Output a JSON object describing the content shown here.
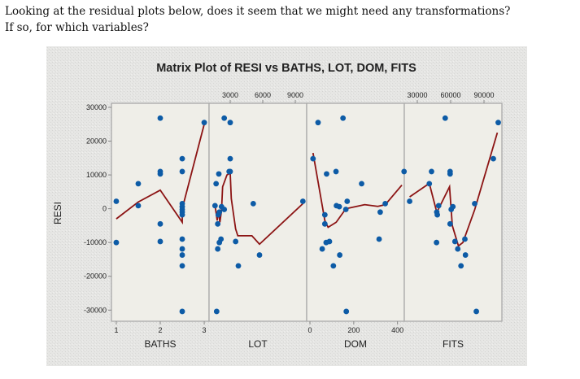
{
  "question": {
    "line1": "Looking at the residual plots below, does it seem that we might need any transformations?",
    "line2": "If so, for which variables?"
  },
  "chart_data": {
    "type": "scatter",
    "title": "Matrix Plot of RESI vs BATHS, LOT, DOM, FITS",
    "ylabel": "RESI",
    "ylim": [
      -33300,
      31200
    ],
    "yticks": [
      "30000",
      "20000",
      "10000",
      "0",
      "-10000",
      "-20000",
      "-30000"
    ],
    "ytick_values": [
      30000,
      20000,
      10000,
      0,
      -10000,
      -20000,
      -30000
    ],
    "grid": false,
    "colors": {
      "points": "#0d5ba6",
      "smoother": "#8c1414",
      "plot_bg": "#efeee8",
      "frame": "#a9a9a9"
    },
    "panels": [
      {
        "xlabel": "BATHS",
        "tick_side": "bottom",
        "xlim": [
          0.89,
          3.11
        ],
        "xticks": [
          "1",
          "2",
          "3"
        ],
        "xtick_values": [
          1,
          2,
          3
        ],
        "points": [
          [
            1,
            2200
          ],
          [
            1,
            -10000
          ],
          [
            1.5,
            7400
          ],
          [
            1.5,
            900
          ],
          [
            2,
            26800
          ],
          [
            2,
            11000
          ],
          [
            2,
            10300
          ],
          [
            2,
            -4500
          ],
          [
            2,
            -9700
          ],
          [
            2.5,
            14800
          ],
          [
            2.5,
            11000
          ],
          [
            2.5,
            1500
          ],
          [
            2.5,
            600
          ],
          [
            2.5,
            -200
          ],
          [
            2.5,
            -1000
          ],
          [
            2.5,
            -1800
          ],
          [
            2.5,
            -9000
          ],
          [
            2.5,
            -11900
          ],
          [
            2.5,
            -13700
          ],
          [
            2.5,
            -16900
          ],
          [
            2.5,
            -30400
          ],
          [
            3,
            25500
          ]
        ],
        "smoother": [
          [
            1,
            -3000
          ],
          [
            1.5,
            2000
          ],
          [
            2,
            5500
          ],
          [
            2.5,
            -4000
          ],
          [
            2.5,
            0
          ],
          [
            3,
            25000
          ]
        ]
      },
      {
        "xlabel": "LOT",
        "tick_side": "top",
        "xlim": [
          1050,
          10050
        ],
        "xticks": [
          "3000",
          "6000",
          "9000"
        ],
        "xtick_values": [
          3000,
          6000,
          9000
        ],
        "points": [
          [
            9700,
            2200
          ],
          [
            5125,
            1500
          ],
          [
            5700,
            -13700
          ],
          [
            3750,
            -16900
          ],
          [
            3500,
            -9700
          ],
          [
            3000,
            25500
          ],
          [
            2450,
            26800
          ],
          [
            3000,
            14800
          ],
          [
            3000,
            11000
          ],
          [
            2900,
            11000
          ],
          [
            1950,
            10300
          ],
          [
            1700,
            7400
          ],
          [
            1600,
            900
          ],
          [
            2200,
            600
          ],
          [
            2450,
            -200
          ],
          [
            2000,
            -1000
          ],
          [
            1900,
            -1800
          ],
          [
            1850,
            -4500
          ],
          [
            2150,
            -9000
          ],
          [
            2000,
            -10000
          ],
          [
            1850,
            -11900
          ],
          [
            1750,
            -30400
          ]
        ],
        "smoother": [
          [
            1600,
            1000
          ],
          [
            1800,
            -3500
          ],
          [
            1900,
            -500
          ],
          [
            2050,
            -4000
          ],
          [
            2200,
            -500
          ],
          [
            2300,
            6500
          ],
          [
            2700,
            10000
          ],
          [
            3000,
            10500
          ],
          [
            3100,
            3000
          ],
          [
            3500,
            -6000
          ],
          [
            3700,
            -8000
          ],
          [
            5000,
            -8000
          ],
          [
            5700,
            -10500
          ],
          [
            9700,
            1500
          ]
        ]
      },
      {
        "xlabel": "DOM",
        "tick_side": "bottom",
        "xlim": [
          -15,
          431
        ],
        "xticks": [
          "0",
          "200",
          "400"
        ],
        "xtick_values": [
          0,
          200,
          400
        ],
        "points": [
          [
            14,
            14800
          ],
          [
            37,
            25500
          ],
          [
            151,
            26800
          ],
          [
            76,
            10300
          ],
          [
            119,
            11000
          ],
          [
            430,
            11000
          ],
          [
            236,
            7400
          ],
          [
            170,
            2200
          ],
          [
            344,
            1500
          ],
          [
            164,
            -200
          ],
          [
            121,
            900
          ],
          [
            134,
            600
          ],
          [
            68,
            -1800
          ],
          [
            68,
            -4500
          ],
          [
            321,
            -1000
          ],
          [
            316,
            -9000
          ],
          [
            89,
            -9700
          ],
          [
            74,
            -10000
          ],
          [
            56,
            -11900
          ],
          [
            136,
            -13700
          ],
          [
            107,
            -16900
          ],
          [
            166,
            -30400
          ]
        ],
        "smoother": [
          [
            14,
            16500
          ],
          [
            68,
            -3500
          ],
          [
            83,
            -5500
          ],
          [
            120,
            -4000
          ],
          [
            164,
            0
          ],
          [
            250,
            1200
          ],
          [
            310,
            700
          ],
          [
            344,
            1200
          ],
          [
            420,
            7000
          ]
        ]
      },
      {
        "xlabel": "FITS",
        "tick_side": "top",
        "xlim": [
          18300,
          106100
        ],
        "xticks": [
          "30000",
          "60000",
          "90000"
        ],
        "xtick_values": [
          30000,
          60000,
          90000
        ],
        "points": [
          [
            23100,
            2200
          ],
          [
            40800,
            7400
          ],
          [
            42800,
            11000
          ],
          [
            55100,
            26800
          ],
          [
            59500,
            11000
          ],
          [
            59500,
            10300
          ],
          [
            49200,
            900
          ],
          [
            47500,
            -1000
          ],
          [
            48000,
            -1800
          ],
          [
            47300,
            -10000
          ],
          [
            60500,
            -200
          ],
          [
            62000,
            600
          ],
          [
            59500,
            -4500
          ],
          [
            63900,
            -9700
          ],
          [
            66400,
            -11900
          ],
          [
            69300,
            -16900
          ],
          [
            72800,
            -9000
          ],
          [
            73300,
            -13700
          ],
          [
            81600,
            1500
          ],
          [
            83100,
            -30400
          ],
          [
            98400,
            14800
          ],
          [
            102800,
            25500
          ]
        ],
        "smoother": [
          [
            23100,
            3500
          ],
          [
            40800,
            7500
          ],
          [
            47500,
            -1000
          ],
          [
            49200,
            0
          ],
          [
            59000,
            6500
          ],
          [
            61500,
            -5000
          ],
          [
            67000,
            -11000
          ],
          [
            71000,
            -10000
          ],
          [
            81600,
            -300
          ],
          [
            102000,
            22500
          ]
        ]
      }
    ]
  }
}
